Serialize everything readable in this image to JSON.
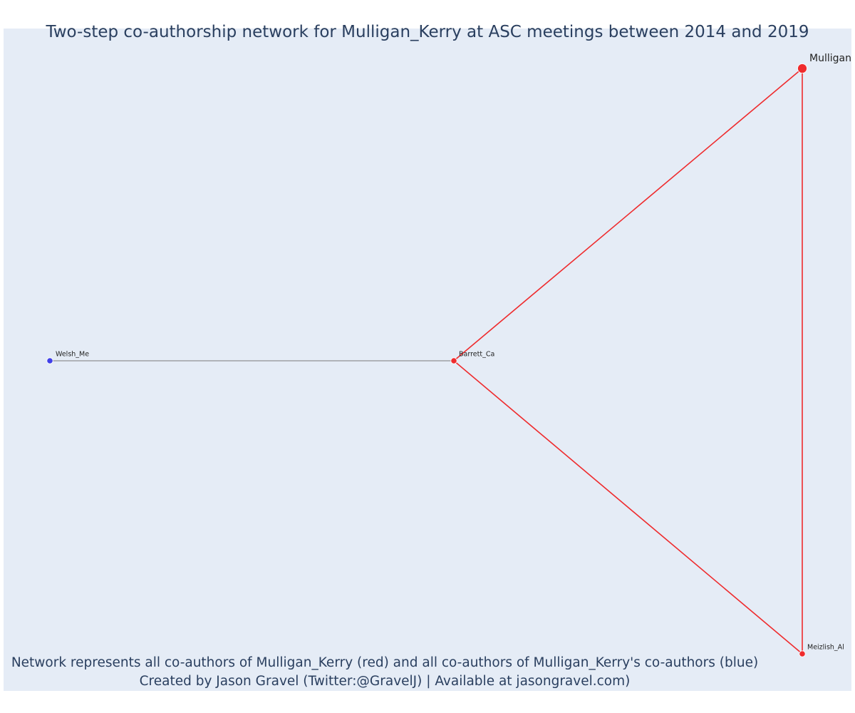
{
  "title": "Two-step co-authorship network for Mulligan_Kerry at ASC meetings between 2014 and 2019",
  "footer": {
    "line1": "Network represents all co-authors of Mulligan_Kerry (red) and all co-authors of Mulligan_Kerry's co-authors (blue)",
    "line2": "Created by Jason Gravel (Twitter:@GravelJ) | Available at jasongravel.com)"
  },
  "colors": {
    "plot_background": "#e5ecf6",
    "text": "#2a3f5f",
    "coauthor": "#ef2b2d",
    "second_step": "#4040e8",
    "second_step_edge": "#7a7a7a"
  },
  "network": {
    "nodes": [
      {
        "id": "mulligan",
        "label": "Mulligan",
        "group": "ego"
      },
      {
        "id": "barrett",
        "label": "Barrett_Ca",
        "group": "coauthor"
      },
      {
        "id": "meizlish",
        "label": "Meizlish_Al",
        "group": "coauthor"
      },
      {
        "id": "welsh",
        "label": "Welsh_Me",
        "group": "second_step"
      }
    ],
    "edges": [
      {
        "source": "mulligan",
        "target": "barrett",
        "type": "coauthor"
      },
      {
        "source": "mulligan",
        "target": "meizlish",
        "type": "coauthor"
      },
      {
        "source": "barrett",
        "target": "meizlish",
        "type": "coauthor"
      },
      {
        "source": "welsh",
        "target": "barrett",
        "type": "second_step"
      }
    ]
  }
}
